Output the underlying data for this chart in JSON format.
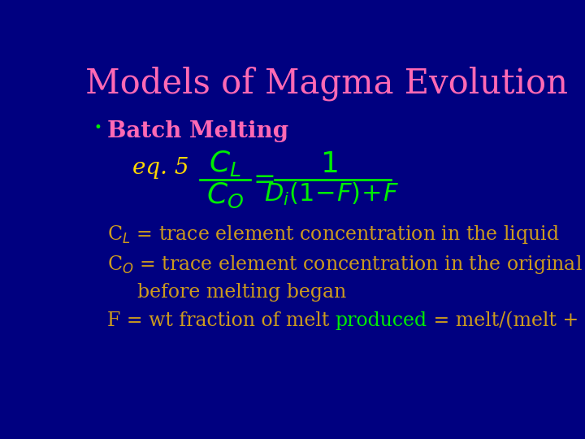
{
  "title": "Models of Magma Evolution",
  "title_color": "#FF69B4",
  "title_fontsize": 30,
  "background_color": "#000080",
  "bullet_color": "#FF69B4",
  "bullet_text": "Batch Melting",
  "bullet_fontsize": 20,
  "eq_label": "eq. 5",
  "eq_label_color": "#FFD700",
  "eq_label_fontsize": 20,
  "green_color": "#00EE00",
  "gold_color": "#CD9B1D",
  "body_fontsize": 17,
  "line1": "C$_L$ = trace element concentration in the liquid",
  "line2": "C$_O$ = trace element concentration in the original rock",
  "line3": "  before melting began",
  "line4_part1": "F = wt fraction of melt ",
  "line4_part2": "produced",
  "line4_part3": " = melt/(melt + rock)"
}
